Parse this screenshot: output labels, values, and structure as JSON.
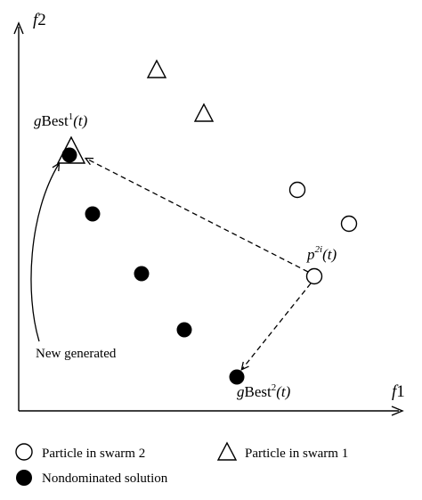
{
  "axes": {
    "y_label_main": "f",
    "y_label_sub": "2",
    "x_label_main": "f",
    "x_label_sub": "1"
  },
  "annotations": {
    "gbest1": {
      "g": "g",
      "text": "Best",
      "sup": "1",
      "arg": "(t)"
    },
    "gbest2": {
      "g": "g",
      "text": "Best",
      "sup": "2",
      "arg": "(t)"
    },
    "p2i": {
      "p": "p",
      "sup": "2i",
      "arg": "(t)"
    },
    "new_generated": "New generated"
  },
  "legend": {
    "swarm2_label": "Particle in swarm 2",
    "swarm1_label": "Particle in swarm 1",
    "nondominated_label": "Nondominated solution"
  },
  "markers": {
    "swarm1_triangles": 3,
    "swarm2_circles": 3,
    "nondominated_dots": 5
  },
  "colors": {
    "ink": "#000000",
    "background": "#ffffff"
  }
}
